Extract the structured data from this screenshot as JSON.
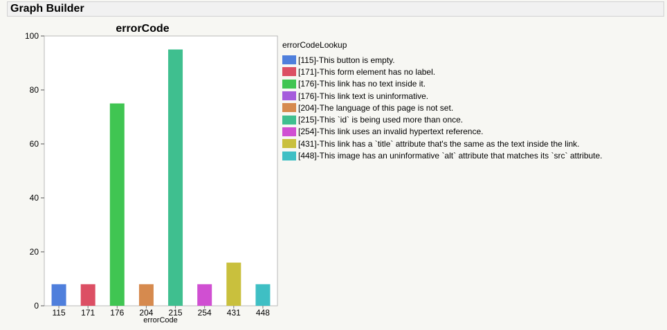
{
  "window": {
    "title": "Graph Builder"
  },
  "legend": {
    "title": "errorCodeLookup",
    "items": [
      {
        "label": "[115]-This button is empty.",
        "color": "#4f7fdc"
      },
      {
        "label": "[171]-This form element has no label.",
        "color": "#dc4f64"
      },
      {
        "label": "[176]-This link has no text inside it.",
        "color": "#40c552"
      },
      {
        "label": "[176]-This link text is uninformative.",
        "color": "#a55cdc"
      },
      {
        "label": "[204]-The language of this page is not set.",
        "color": "#d68a4e"
      },
      {
        "label": "[215]-This `id` is being used more than once.",
        "color": "#3fbf8f"
      },
      {
        "label": "[254]-This link uses an invalid hypertext reference.",
        "color": "#d04fd2"
      },
      {
        "label": "[431]-This link has a `title` attribute that's the same as the text inside the link.",
        "color": "#c9c03d"
      },
      {
        "label": "[448]-This image has an uninformative `alt` attribute that matches its `src` attribute.",
        "color": "#3fbfc4"
      }
    ]
  },
  "chart_data": {
    "type": "bar",
    "title": "errorCode",
    "xlabel": "errorCode",
    "ylabel": "",
    "categories": [
      "115",
      "171",
      "176",
      "204",
      "215",
      "254",
      "431",
      "448"
    ],
    "values": [
      8,
      8,
      75,
      8,
      95,
      8,
      16,
      8
    ],
    "colors": [
      "#4f7fdc",
      "#dc4f64",
      "#40c552",
      "#d68a4e",
      "#3fbf8f",
      "#d04fd2",
      "#c9c03d",
      "#3fbfc4"
    ],
    "ylim": [
      0,
      100
    ],
    "yticks": [
      0,
      20,
      40,
      60,
      80,
      100
    ],
    "grid": false,
    "legend_position": "right"
  }
}
